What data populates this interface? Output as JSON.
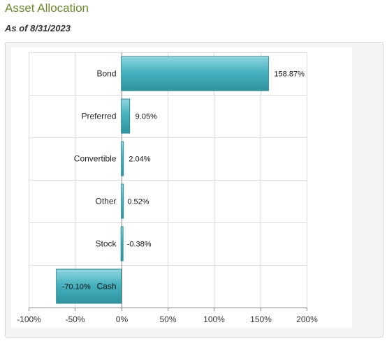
{
  "title": "Asset Allocation",
  "subtitle": "As of 8/31/2023",
  "chart_data": {
    "type": "bar",
    "orientation": "horizontal",
    "categories": [
      "Bond",
      "Preferred",
      "Convertible",
      "Other",
      "Stock",
      "Cash"
    ],
    "values": [
      158.87,
      9.05,
      2.04,
      0.52,
      -0.38,
      -70.1
    ],
    "value_labels": [
      "158.87%",
      "9.05%",
      "2.04%",
      "0.52%",
      "-0.38%",
      "-70.10%"
    ],
    "xlim": [
      -100,
      200
    ],
    "x_ticks": [
      -100,
      -50,
      0,
      50,
      100,
      150,
      200
    ],
    "x_tick_labels": [
      "-100%",
      "-50%",
      "0%",
      "50%",
      "100%",
      "150%",
      "200%"
    ],
    "grid": true,
    "colors": {
      "bar": "#46b2bf",
      "bar_dark": "#2e8e99",
      "grid": "#dcdcdc",
      "axis": "#888888"
    }
  }
}
